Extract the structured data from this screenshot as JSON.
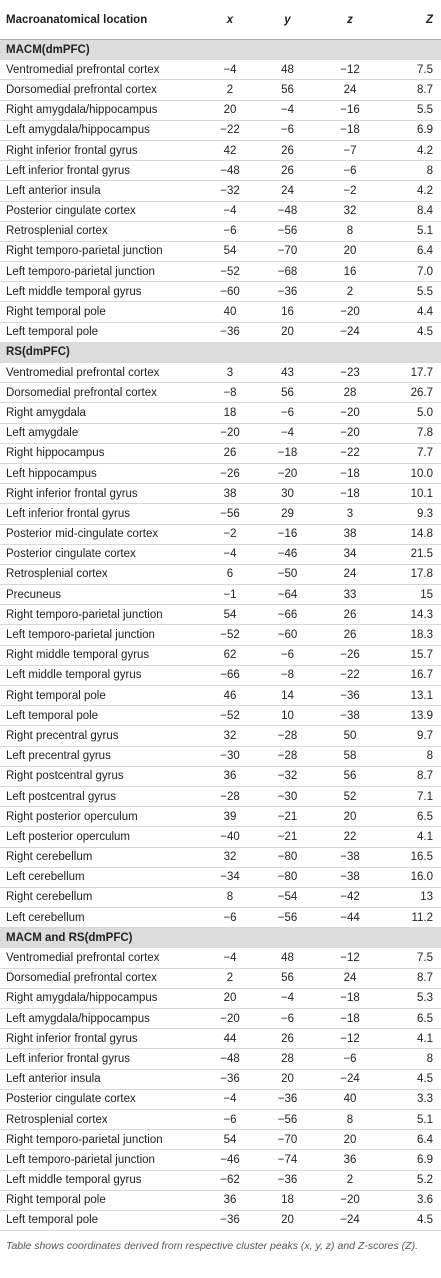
{
  "header": [
    "Macroanatomical location",
    "x",
    "y",
    "z",
    "Z"
  ],
  "sections": [
    {
      "title": "MACM(dmPFC)",
      "rows": [
        [
          "Ventromedial prefrontal cortex",
          "−4",
          "48",
          "−12",
          "7.5"
        ],
        [
          "Dorsomedial prefrontal cortex",
          "2",
          "56",
          "24",
          "8.7"
        ],
        [
          "Right amygdala/hippocampus",
          "20",
          "−4",
          "−16",
          "5.5"
        ],
        [
          "Left amygdala/hippocampus",
          "−22",
          "−6",
          "−18",
          "6.9"
        ],
        [
          "Right inferior frontal gyrus",
          "42",
          "26",
          "−7",
          "4.2"
        ],
        [
          "Left inferior frontal gyrus",
          "−48",
          "26",
          "−6",
          "8"
        ],
        [
          "Left anterior insula",
          "−32",
          "24",
          "−2",
          "4.2"
        ],
        [
          "Posterior cingulate cortex",
          "−4",
          "−48",
          "32",
          "8.4"
        ],
        [
          "Retrosplenial cortex",
          "−6",
          "−56",
          "8",
          "5.1"
        ],
        [
          "Right temporo-parietal junction",
          "54",
          "−70",
          "20",
          "6.4"
        ],
        [
          "Left temporo-parietal junction",
          "−52",
          "−68",
          "16",
          "7.0"
        ],
        [
          "Left middle temporal gyrus",
          "−60",
          "−36",
          "2",
          "5.5"
        ],
        [
          "Right temporal pole",
          "40",
          "16",
          "−20",
          "4.4"
        ],
        [
          "Left temporal pole",
          "−36",
          "20",
          "−24",
          "4.5"
        ]
      ]
    },
    {
      "title": "RS(dmPFC)",
      "rows": [
        [
          "Ventromedial prefrontal cortex",
          "3",
          "43",
          "−23",
          "17.7"
        ],
        [
          "Dorsomedial prefrontal cortex",
          "−8",
          "56",
          "28",
          "26.7"
        ],
        [
          "Right amygdala",
          "18",
          "−6",
          "−20",
          "5.0"
        ],
        [
          "Left amygdale",
          "−20",
          "−4",
          "−20",
          "7.8"
        ],
        [
          "Right hippocampus",
          "26",
          "−18",
          "−22",
          "7.7"
        ],
        [
          "Left hippocampus",
          "−26",
          "−20",
          "−18",
          "10.0"
        ],
        [
          "Right inferior frontal gyrus",
          "38",
          "30",
          "−18",
          "10.1"
        ],
        [
          "Left inferior frontal gyrus",
          "−56",
          "29",
          "3",
          "9.3"
        ],
        [
          "Posterior mid-cingulate cortex",
          "−2",
          "−16",
          "38",
          "14.8"
        ],
        [
          "Posterior cingulate cortex",
          "−4",
          "−46",
          "34",
          "21.5"
        ],
        [
          "Retrosplenial cortex",
          "6",
          "−50",
          "24",
          "17.8"
        ],
        [
          "Precuneus",
          "−1",
          "−64",
          "33",
          "15"
        ],
        [
          "Right temporo-parietal junction",
          "54",
          "−66",
          "26",
          "14.3"
        ],
        [
          "Left temporo-parietal junction",
          "−52",
          "−60",
          "26",
          "18.3"
        ],
        [
          "Right middle temporal gyrus",
          "62",
          "−6",
          "−26",
          "15.7"
        ],
        [
          "Left middle temporal gyrus",
          "−66",
          "−8",
          "−22",
          "16.7"
        ],
        [
          "Right temporal pole",
          "46",
          "14",
          "−36",
          "13.1"
        ],
        [
          "Left temporal pole",
          "−52",
          "10",
          "−38",
          "13.9"
        ],
        [
          "Right precentral gyrus",
          "32",
          "−28",
          "50",
          "9.7"
        ],
        [
          "Left precentral gyrus",
          "−30",
          "−28",
          "58",
          "8"
        ],
        [
          "Right postcentral gyrus",
          "36",
          "−32",
          "56",
          "8.7"
        ],
        [
          "Left postcentral gyrus",
          "−28",
          "−30",
          "52",
          "7.1"
        ],
        [
          "Right posterior operculum",
          "39",
          "−21",
          "20",
          "6.5"
        ],
        [
          "Left posterior operculum",
          "−40",
          "−21",
          "22",
          "4.1"
        ],
        [
          "Right cerebellum",
          "32",
          "−80",
          "−38",
          "16.5"
        ],
        [
          "Left cerebellum",
          "−34",
          "−80",
          "−38",
          "16.0"
        ],
        [
          "Right cerebellum",
          "8",
          "−54",
          "−42",
          "13"
        ],
        [
          "Left cerebellum",
          "−6",
          "−56",
          "−44",
          "11.2"
        ]
      ]
    },
    {
      "title": "MACM and RS(dmPFC)",
      "rows": [
        [
          "Ventromedial prefrontal cortex",
          "−4",
          "48",
          "−12",
          "7.5"
        ],
        [
          "Dorsomedial prefrontal cortex",
          "2",
          "56",
          "24",
          "8.7"
        ],
        [
          "Right amygdala/hippocampus",
          "20",
          "−4",
          "−18",
          "5.3"
        ],
        [
          "Left amygdala/hippocampus",
          "−20",
          "−6",
          "−18",
          "6.5"
        ],
        [
          "Right inferior frontal gyrus",
          "44",
          "26",
          "−12",
          "4.1"
        ],
        [
          "Left inferior frontal gyrus",
          "−48",
          "28",
          "−6",
          "8"
        ],
        [
          "Left anterior insula",
          "−36",
          "20",
          "−24",
          "4.5"
        ],
        [
          "Posterior cingulate cortex",
          "−4",
          "−36",
          "40",
          "3.3"
        ],
        [
          "Retrosplenial cortex",
          "−6",
          "−56",
          "8",
          "5.1"
        ],
        [
          "Right temporo-parietal junction",
          "54",
          "−70",
          "20",
          "6.4"
        ],
        [
          "Left temporo-parietal junction",
          "−46",
          "−74",
          "36",
          "6.9"
        ],
        [
          "Left middle temporal gyrus",
          "−62",
          "−36",
          "2",
          "5.2"
        ],
        [
          "Right temporal pole",
          "36",
          "18",
          "−20",
          "3.6"
        ],
        [
          "Left temporal pole",
          "−36",
          "20",
          "−24",
          "4.5"
        ]
      ]
    }
  ],
  "footnote": "Table shows coordinates derived from respective cluster peaks (x, y, z) and Z-scores (Z)."
}
